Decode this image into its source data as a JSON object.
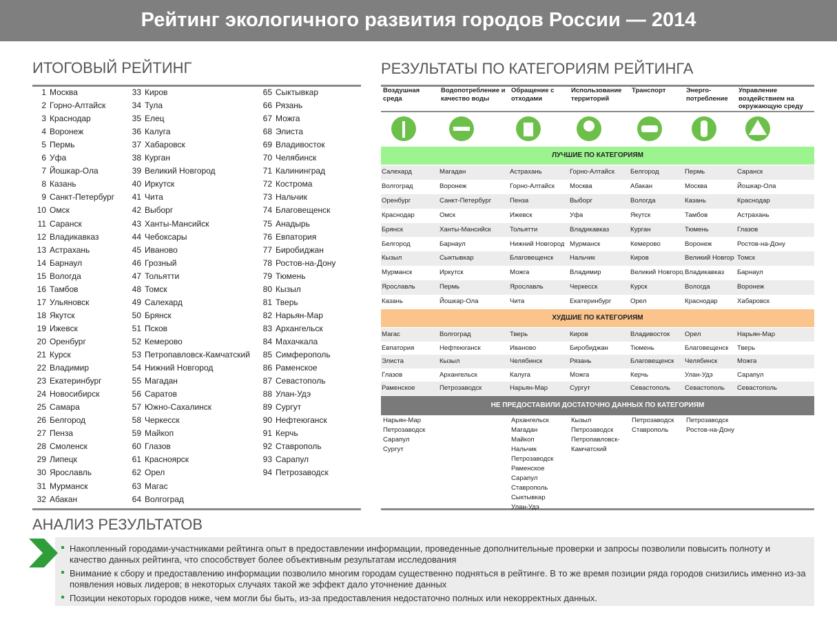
{
  "header": {
    "title": "Рейтинг экологичного развития городов России — 2014"
  },
  "ranking_section": {
    "title": "ИТОГОВЫЙ РЕЙТИНГ",
    "rows": [
      [
        1,
        "Москва"
      ],
      [
        2,
        "Горно-Алтайск"
      ],
      [
        3,
        "Краснодар"
      ],
      [
        4,
        "Воронеж"
      ],
      [
        5,
        "Пермь"
      ],
      [
        6,
        "Уфа"
      ],
      [
        7,
        "Йошкар-Ола"
      ],
      [
        8,
        "Казань"
      ],
      [
        9,
        "Санкт-Петербург"
      ],
      [
        10,
        "Омск"
      ],
      [
        11,
        "Саранск"
      ],
      [
        12,
        "Владикавказ"
      ],
      [
        13,
        "Астрахань"
      ],
      [
        14,
        "Барнаул"
      ],
      [
        15,
        "Вологда"
      ],
      [
        16,
        "Тамбов"
      ],
      [
        17,
        "Ульяновск"
      ],
      [
        18,
        "Якутск"
      ],
      [
        19,
        "Ижевск"
      ],
      [
        20,
        "Оренбург"
      ],
      [
        21,
        "Курск"
      ],
      [
        22,
        "Владимир"
      ],
      [
        23,
        "Екатеринбург"
      ],
      [
        24,
        "Новосибирск"
      ],
      [
        25,
        "Самара"
      ],
      [
        26,
        "Белгород"
      ],
      [
        27,
        "Пенза"
      ],
      [
        28,
        "Смоленск"
      ],
      [
        29,
        "Липецк"
      ],
      [
        30,
        "Ярославль"
      ],
      [
        31,
        "Мурманск"
      ],
      [
        32,
        "Абакан"
      ],
      [
        33,
        "Киров"
      ],
      [
        34,
        "Тула"
      ],
      [
        35,
        "Елец"
      ],
      [
        36,
        "Калуга"
      ],
      [
        37,
        "Хабаровск"
      ],
      [
        38,
        "Курган"
      ],
      [
        39,
        "Великий Новгород"
      ],
      [
        40,
        "Иркутск"
      ],
      [
        41,
        "Чита"
      ],
      [
        42,
        "Выборг"
      ],
      [
        43,
        "Ханты-Мансийск"
      ],
      [
        44,
        "Чебоксары"
      ],
      [
        45,
        "Иваново"
      ],
      [
        46,
        "Грозный"
      ],
      [
        47,
        "Тольятти"
      ],
      [
        48,
        "Томск"
      ],
      [
        49,
        "Салехард"
      ],
      [
        50,
        "Брянск"
      ],
      [
        51,
        "Псков"
      ],
      [
        52,
        "Кемерово"
      ],
      [
        53,
        "Петропавловск-Камчатский"
      ],
      [
        54,
        "Нижний Новгород"
      ],
      [
        55,
        "Магадан"
      ],
      [
        56,
        "Саратов"
      ],
      [
        57,
        "Южно-Сахалинск"
      ],
      [
        58,
        "Черкесск"
      ],
      [
        59,
        "Майкоп"
      ],
      [
        60,
        "Глазов"
      ],
      [
        61,
        "Красноярск"
      ],
      [
        62,
        "Орел"
      ],
      [
        63,
        "Магас"
      ],
      [
        64,
        "Волгоград"
      ],
      [
        65,
        "Сыктывкар"
      ],
      [
        66,
        "Рязань"
      ],
      [
        67,
        "Можга"
      ],
      [
        68,
        "Элиста"
      ],
      [
        69,
        "Владивосток"
      ],
      [
        70,
        "Челябинск"
      ],
      [
        71,
        "Калининград"
      ],
      [
        72,
        "Кострома"
      ],
      [
        73,
        "Нальчик"
      ],
      [
        74,
        "Благовещенск"
      ],
      [
        75,
        "Анадырь"
      ],
      [
        76,
        "Евпатория"
      ],
      [
        77,
        "Биробиджан"
      ],
      [
        78,
        "Ростов-на-Дону"
      ],
      [
        79,
        "Тюмень"
      ],
      [
        80,
        "Кызыл"
      ],
      [
        81,
        "Тверь"
      ],
      [
        82,
        "Нарьян-Мар"
      ],
      [
        83,
        "Архангельск"
      ],
      [
        84,
        "Махачкала"
      ],
      [
        85,
        "Симферополь"
      ],
      [
        86,
        "Раменское"
      ],
      [
        87,
        "Севастополь"
      ],
      [
        88,
        "Улан-Удэ"
      ],
      [
        89,
        "Сургут"
      ],
      [
        90,
        "Нефтеюганск"
      ],
      [
        91,
        "Керчь"
      ],
      [
        92,
        "Ставрополь"
      ],
      [
        93,
        "Сарапул"
      ],
      [
        94,
        "Петрозаводск"
      ]
    ]
  },
  "categories_section": {
    "title": "РЕЗУЛЬТАТЫ ПО КАТЕГОРИЯМ РЕЙТИНГА",
    "categories": [
      "Воздушная среда",
      "Водопотребление и качество воды",
      "Обращение с отходами",
      "Использование территорий",
      "Транспорт",
      "Энерго-потребление",
      "Управление воздействием на окружающую среду"
    ],
    "best_title": "ЛУЧШИЕ ПО КАТЕГОРИЯМ",
    "best": [
      [
        "Салехард",
        "Магадан",
        "Астрахань",
        "Горно-Алтайск",
        "Белгород",
        "Пермь",
        "Саранск"
      ],
      [
        "Волгоград",
        "Воронеж",
        "Горно-Алтайск",
        "Москва",
        "Абакан",
        "Москва",
        "Йошкар-Ола"
      ],
      [
        "Оренбург",
        "Санкт-Петербург",
        "Пенза",
        "Выборг",
        "Вологда",
        "Казань",
        "Краснодар"
      ],
      [
        "Краснодар",
        "Омск",
        "Ижевск",
        "Уфа",
        "Якутск",
        "Тамбов",
        "Астрахань"
      ],
      [
        "Брянск",
        "Ханты-Мансийск",
        "Тольятти",
        "Владикавказ",
        "Курган",
        "Тюмень",
        "Глазов"
      ],
      [
        "Белгород",
        "Барнаул",
        "Нижний Новгород",
        "Мурманск",
        "Кемерово",
        "Воронеж",
        "Ростов-на-Дону"
      ],
      [
        "Кызыл",
        "Сыктывкар",
        "Благовещенск",
        "Нальчик",
        "Киров",
        "Великий Новгород",
        "Томск"
      ],
      [
        "Мурманск",
        "Иркутск",
        "Можга",
        "Владимир",
        "Великий Новгород",
        "Владикавказ",
        "Барнаул"
      ],
      [
        "Ярославль",
        "Пермь",
        "Ярославль",
        "Черкесск",
        "Курск",
        "Вологда",
        "Воронеж"
      ],
      [
        "Казань",
        "Йошкар-Ола",
        "Чита",
        "Екатеринбург",
        "Орел",
        "Краснодар",
        "Хабаровск"
      ]
    ],
    "worst_title": "ХУДШИЕ ПО КАТЕГОРИЯМ",
    "worst": [
      [
        "Магас",
        "Волгоград",
        "Тверь",
        "Киров",
        "Владивосток",
        "Орел",
        "Нарьян-Мар"
      ],
      [
        "Евпатория",
        "Нефтеюганск",
        "Иваново",
        "Биробиджан",
        "Тюмень",
        "Благовещенск",
        "Тверь"
      ],
      [
        "Элиста",
        "Кызыл",
        "Челябинск",
        "Рязань",
        "Благовещенск",
        "Челябинск",
        "Можга"
      ],
      [
        "Глазов",
        "Архангельск",
        "Калуга",
        "Можга",
        "Керчь",
        "Улан-Удэ",
        "Сарапул"
      ],
      [
        "Раменское",
        "Петрозаводск",
        "Нарьян-Мар",
        "Сургут",
        "Севастополь",
        "Севастополь",
        "Севастополь"
      ]
    ],
    "nodata_title": "НЕ ПРЕДОСТАВИЛИ ДОСТАТОЧНО ДАННЫХ ПО КАТЕГОРИЯМ",
    "nodata": [
      [
        "Нарьян-Мар",
        "Петрозаводск",
        "Сарапул",
        "Сургут"
      ],
      [],
      [
        "Архангельск",
        "Магадан",
        "Майкоп",
        "Нальчик",
        "Петрозаводск",
        "Раменское",
        "Сарапул",
        "Ставрополь",
        "Сыктывкар",
        "Улан-Удэ"
      ],
      [
        "Кызыл",
        "Петрозаводск",
        "Петропавловск-Камчатский"
      ],
      [
        "Петрозаводск",
        "Ставрополь"
      ],
      [
        "Петрозаводск",
        "Ростов-на-Дону"
      ],
      []
    ]
  },
  "analysis": {
    "title": "АНАЛИЗ РЕЗУЛЬТАТОВ",
    "bullets": [
      "Накопленный городами-участниками рейтинга опыт в предоставлении информации, проведенные дополнительные проверки и запросы позволили повысить полноту и качество данных рейтинга, что способствует более объективным результатам исследования",
      "Внимание к сбору и предоставлению информации позволило многим городам существенно подняться в рейтинге. В то же время позиции ряда городов снизились именно из-за появления новых лидеров; в некоторых случаях такой же эффект дало уточнение данных",
      "Позиции некоторых городов ниже, чем могли бы быть, из-за предоставления недостаточно полных или некорректных данных."
    ]
  }
}
